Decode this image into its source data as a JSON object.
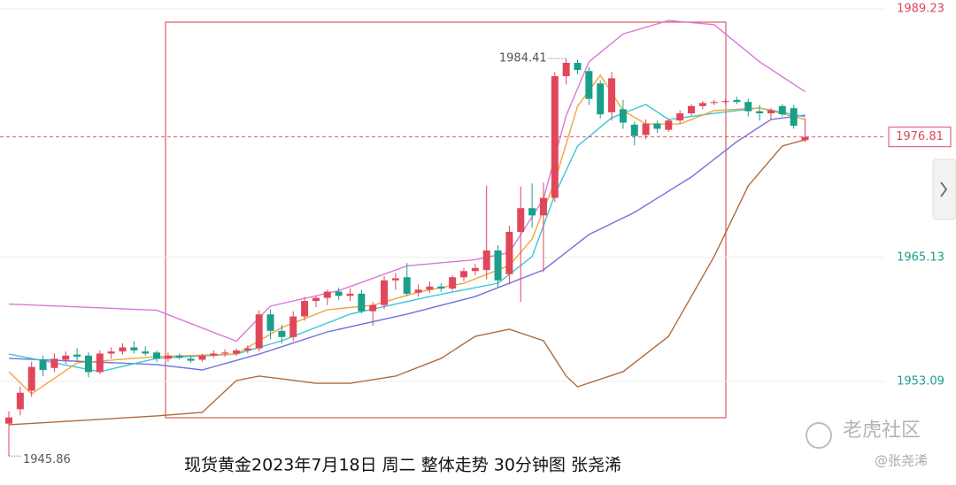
{
  "chart_data": {
    "type": "candlestick",
    "caption": "现货黄金2023年7月18日 周二 整体走势  30分钟图  张尧浠",
    "watermark": [
      "老虎社区",
      "@张尧浠"
    ],
    "up_color": "#e0475a",
    "down_color": "#1aa08a",
    "ylim": [
      1943.05,
      1990.09
    ],
    "yticks": [
      1989.23,
      1965.13,
      1953.09
    ],
    "grid": true,
    "open": [
      1949.0,
      1950.4,
      1952.2,
      1955.2,
      1954.4,
      1955.2,
      1955.7,
      1955.6,
      1954.0,
      1955.8,
      1956.0,
      1956.4,
      1956.0,
      1955.9,
      1955.3,
      1955.6,
      1955.3,
      1955.2,
      1955.6,
      1955.8,
      1955.8,
      1956.1,
      1956.3,
      1959.6,
      1958.0,
      1957.4,
      1959.4,
      1960.9,
      1961.2,
      1961.8,
      1961.4,
      1961.6,
      1959.9,
      1960.5,
      1962.9,
      1963.2,
      1961.7,
      1962.0,
      1962.3,
      1962.1,
      1963.2,
      1963.8,
      1963.9,
      1965.8,
      1963.5,
      1967.6,
      1969.9,
      1969.2,
      1970.9,
      1982.7,
      1984.0,
      1983.2,
      1982.0,
      1979.2,
      1979.5,
      1978.0,
      1977.0,
      1978.1,
      1977.5,
      1978.4,
      1979.1,
      1979.8,
      1980.1,
      1980.2,
      1980.4,
      1980.2,
      1979.3,
      1979.1,
      1979.8,
      1979.6,
      1976.5
    ],
    "high": [
      1950.2,
      1952.6,
      1955.0,
      1955.6,
      1955.8,
      1956.0,
      1956.3,
      1955.9,
      1956.1,
      1956.4,
      1956.8,
      1957.0,
      1956.5,
      1956.1,
      1955.9,
      1955.8,
      1955.6,
      1955.8,
      1956.1,
      1956.2,
      1956.3,
      1956.6,
      1960.0,
      1960.1,
      1958.6,
      1959.9,
      1961.3,
      1961.4,
      1962.0,
      1962.2,
      1962.1,
      1962.0,
      1960.8,
      1963.3,
      1963.6,
      1964.6,
      1962.5,
      1962.8,
      1962.6,
      1963.4,
      1964.1,
      1964.5,
      1972.1,
      1966.3,
      1968.2,
      1972.0,
      1972.3,
      1972.4,
      1983.1,
      1984.41,
      1984.3,
      1983.6,
      1982.3,
      1983.1,
      1980.4,
      1978.3,
      1978.5,
      1978.4,
      1978.6,
      1979.4,
      1980.0,
      1980.3,
      1980.4,
      1980.5,
      1980.7,
      1980.5,
      1979.9,
      1979.6,
      1980.0,
      1979.9,
      1978.6
    ],
    "low": [
      1945.86,
      1949.8,
      1951.6,
      1953.6,
      1954.0,
      1954.8,
      1955.0,
      1953.5,
      1953.8,
      1955.3,
      1955.7,
      1955.8,
      1955.6,
      1955.0,
      1955.0,
      1955.2,
      1954.9,
      1955.0,
      1955.4,
      1955.5,
      1955.6,
      1955.8,
      1956.0,
      1957.2,
      1956.8,
      1957.0,
      1959.0,
      1960.3,
      1960.5,
      1961.0,
      1960.9,
      1959.7,
      1958.5,
      1960.1,
      1962.0,
      1961.4,
      1961.3,
      1961.7,
      1961.8,
      1961.9,
      1962.8,
      1963.4,
      1963.0,
      1962.2,
      1962.5,
      1960.8,
      1968.0,
      1963.7,
      1970.5,
      1981.9,
      1982.9,
      1979.9,
      1978.6,
      1978.4,
      1977.6,
      1976.0,
      1976.6,
      1977.2,
      1977.3,
      1978.1,
      1978.9,
      1979.5,
      1979.9,
      1980.0,
      1980.0,
      1978.8,
      1978.4,
      1978.5,
      1978.8,
      1977.6,
      1976.3
    ],
    "close": [
      1949.6,
      1952.0,
      1954.5,
      1954.2,
      1955.3,
      1955.6,
      1955.5,
      1954.0,
      1955.8,
      1956.0,
      1956.4,
      1956.1,
      1955.8,
      1955.3,
      1955.6,
      1955.4,
      1955.1,
      1955.6,
      1955.8,
      1955.9,
      1956.1,
      1956.3,
      1959.6,
      1958.0,
      1957.4,
      1959.4,
      1960.9,
      1961.2,
      1961.8,
      1961.4,
      1961.6,
      1959.9,
      1960.5,
      1962.9,
      1963.1,
      1961.6,
      1962.0,
      1962.3,
      1962.1,
      1963.2,
      1963.8,
      1964.1,
      1965.8,
      1962.9,
      1967.6,
      1969.9,
      1969.2,
      1970.9,
      1982.7,
      1984.0,
      1983.3,
      1980.5,
      1979.0,
      1982.5,
      1978.2,
      1976.9,
      1978.1,
      1977.6,
      1978.4,
      1979.1,
      1979.8,
      1980.1,
      1980.2,
      1980.3,
      1980.2,
      1979.3,
      1979.1,
      1979.4,
      1979.0,
      1977.9,
      1976.81
    ],
    "lines": [
      {
        "color": "#d977d9",
        "x": [
          0,
          13,
          20,
          23,
          29,
          35,
          41,
          44,
          47,
          49,
          51,
          54,
          58,
          62,
          66,
          70
        ],
        "values": [
          1960.6,
          1960.0,
          1957.0,
          1960.4,
          1961.9,
          1964.3,
          1964.9,
          1965.6,
          1970.8,
          1978.9,
          1984.1,
          1986.8,
          1988.1,
          1987.7,
          1984.1,
          1981.2
        ]
      },
      {
        "color": "#b06a3b",
        "x": [
          0,
          13,
          17,
          20,
          22,
          24,
          27,
          30,
          34,
          38,
          41,
          44,
          47,
          49,
          50,
          54,
          58,
          62,
          65,
          68,
          70
        ],
        "values": [
          1948.89,
          1949.75,
          1950.09,
          1953.18,
          1953.61,
          1953.35,
          1952.92,
          1952.92,
          1953.61,
          1955.33,
          1957.47,
          1958.16,
          1957.04,
          1953.61,
          1952.58,
          1954.04,
          1957.47,
          1965.2,
          1972.06,
          1975.93,
          1976.53
        ]
      },
      {
        "color": "#6f72e0",
        "x": [
          0,
          13,
          17,
          22,
          28,
          35,
          41,
          47,
          51,
          55,
          60,
          64,
          67,
          70
        ],
        "values": [
          1955.33,
          1954.73,
          1954.21,
          1955.75,
          1957.9,
          1959.62,
          1961.33,
          1963.91,
          1967.34,
          1969.49,
          1972.92,
          1976.35,
          1978.5,
          1978.93
        ]
      },
      {
        "color": "#3cc6d6",
        "x": [
          0,
          8,
          13,
          20,
          24,
          30,
          37,
          43,
          46,
          48,
          50,
          53,
          56,
          58,
          62,
          66,
          70
        ],
        "values": [
          1955.75,
          1954.04,
          1955.33,
          1955.75,
          1957.04,
          1959.62,
          1961.33,
          1962.62,
          1965.2,
          1971.2,
          1975.93,
          1978.67,
          1979.96,
          1978.5,
          1979.1,
          1979.62,
          1978.76
        ]
      },
      {
        "color": "#f3a33c",
        "x": [
          0,
          2,
          6,
          13,
          20,
          24,
          28,
          32,
          36,
          40,
          44,
          46,
          48,
          50,
          52,
          54,
          56,
          59,
          62,
          66,
          70
        ],
        "values": [
          1954.04,
          1951.89,
          1954.9,
          1955.5,
          1955.75,
          1958.33,
          1960.05,
          1960.48,
          1961.76,
          1962.62,
          1964.34,
          1966.91,
          1972.49,
          1979.79,
          1982.79,
          1979.36,
          1978.07,
          1978.07,
          1979.36,
          1979.62,
          1978.5
        ]
      }
    ]
  }
}
